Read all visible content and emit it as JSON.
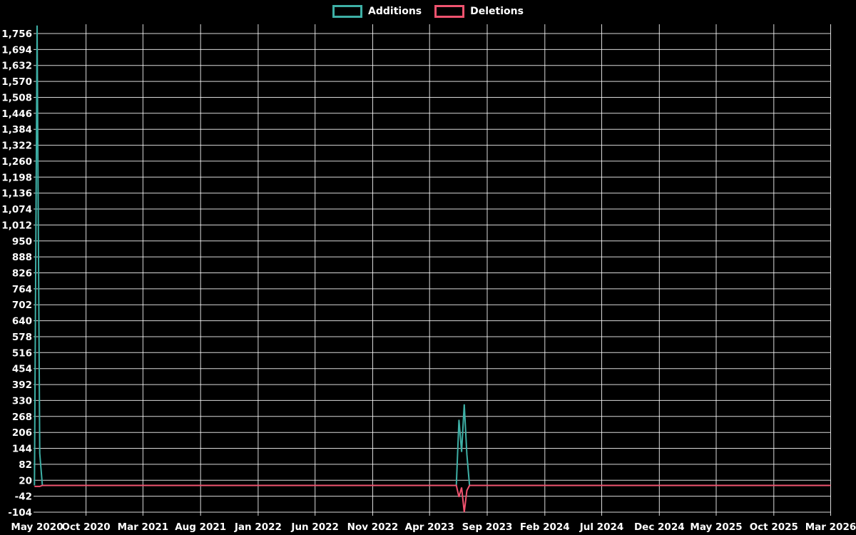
{
  "chart_data": {
    "type": "line",
    "title": "",
    "legend_position": "top",
    "grid": true,
    "background": "#000000",
    "text_color": "#ffffff",
    "grid_color": "rgba(255,255,255,0.85)",
    "legend": [
      {
        "label": "Additions",
        "color": "#3eb0a6"
      },
      {
        "label": "Deletions",
        "color": "#f0536f"
      }
    ],
    "y_axis": {
      "min": -104,
      "max": 1756,
      "step": 62,
      "tick_values": [
        -104,
        -42,
        20,
        82,
        144,
        206,
        268,
        330,
        392,
        454,
        516,
        578,
        640,
        702,
        764,
        826,
        888,
        950,
        1012,
        1074,
        1136,
        1198,
        1260,
        1322,
        1384,
        1446,
        1508,
        1570,
        1632,
        1694,
        1756
      ],
      "tick_labels": [
        "-104",
        "-42",
        "20",
        "82",
        "144",
        "206",
        "268",
        "330",
        "392",
        "454",
        "516",
        "578",
        "640",
        "702",
        "764",
        "826",
        "888",
        "950",
        "1,012",
        "1,074",
        "1,136",
        "1,198",
        "1,260",
        "1,322",
        "1,384",
        "1,446",
        "1,508",
        "1,570",
        "1,632",
        "1,694",
        "1,756"
      ]
    },
    "x_axis": {
      "ticks": [
        {
          "date": "2020-05-24",
          "label": "May 2020"
        },
        {
          "date": "2020-10-01",
          "label": "Oct 2020"
        },
        {
          "date": "2021-03-01",
          "label": "Mar 2021"
        },
        {
          "date": "2021-08-01",
          "label": "Aug 2021"
        },
        {
          "date": "2022-01-01",
          "label": "Jan 2022"
        },
        {
          "date": "2022-06-01",
          "label": "Jun 2022"
        },
        {
          "date": "2022-11-01",
          "label": "Nov 2022"
        },
        {
          "date": "2023-04-01",
          "label": "Apr 2023"
        },
        {
          "date": "2023-09-01",
          "label": "Sep 2023"
        },
        {
          "date": "2024-02-01",
          "label": "Feb 2024"
        },
        {
          "date": "2024-07-01",
          "label": "Jul 2024"
        },
        {
          "date": "2024-12-01",
          "label": "Dec 2024"
        },
        {
          "date": "2025-05-01",
          "label": "May 2025"
        },
        {
          "date": "2025-10-01",
          "label": "Oct 2025"
        },
        {
          "date": "2026-03-01",
          "label": "Mar 2026"
        }
      ]
    },
    "series": [
      {
        "name": "Additions",
        "color": "#3eb0a6",
        "points": [
          [
            "2020-05-17",
            0
          ],
          [
            "2020-05-24",
            1787
          ],
          [
            "2020-05-31",
            125
          ],
          [
            "2020-06-07",
            0
          ],
          [
            "2023-06-11",
            0
          ],
          [
            "2023-06-18",
            255
          ],
          [
            "2023-06-25",
            130
          ],
          [
            "2023-07-02",
            315
          ],
          [
            "2023-07-09",
            120
          ],
          [
            "2023-07-16",
            0
          ],
          [
            "2026-03-01",
            0
          ]
        ]
      },
      {
        "name": "Deletions",
        "color": "#f0536f",
        "points": [
          [
            "2020-05-17",
            -4
          ],
          [
            "2020-05-31",
            -4
          ],
          [
            "2020-06-07",
            0
          ],
          [
            "2023-06-11",
            0
          ],
          [
            "2023-06-18",
            -45
          ],
          [
            "2023-06-25",
            -8
          ],
          [
            "2023-07-02",
            -104
          ],
          [
            "2023-07-09",
            -20
          ],
          [
            "2023-07-16",
            0
          ],
          [
            "2026-03-01",
            0
          ]
        ]
      }
    ]
  }
}
